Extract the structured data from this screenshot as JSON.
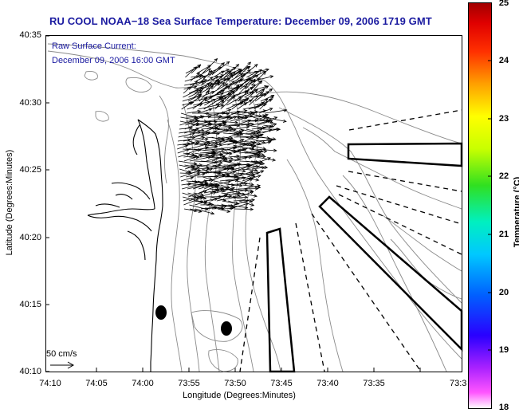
{
  "title": "RU COOL  NOAA−18  Sea Surface Temperature:  December 09, 2006 1719 GMT",
  "annotation": {
    "line1": "Raw Surface Current:",
    "line2": "December 09, 2006 16:00 GMT"
  },
  "axes": {
    "xlabel": "Longitude (Degrees:Minutes)",
    "ylabel": "Latitude (Degrees:Minutes)",
    "xticks": [
      "74:10",
      "74:05",
      "74:00",
      "73:55",
      "73:50",
      "73:45",
      "73:40",
      "73:35",
      "73:3"
    ],
    "yticks": [
      "40:35",
      "40:30",
      "40:25",
      "40:20",
      "40:15",
      "40:10"
    ]
  },
  "colorbar": {
    "label": "Temperature (°C)",
    "ticks": [
      "25",
      "24",
      "23",
      "22",
      "21",
      "20",
      "19",
      "18"
    ],
    "min": 18,
    "max": 25
  },
  "scale_vector": {
    "label": "50 cm/s"
  },
  "colors": {
    "title": "#1a1aa0",
    "coast": "#000000",
    "bathymetry": "#888888",
    "vectors": "#000000"
  }
}
